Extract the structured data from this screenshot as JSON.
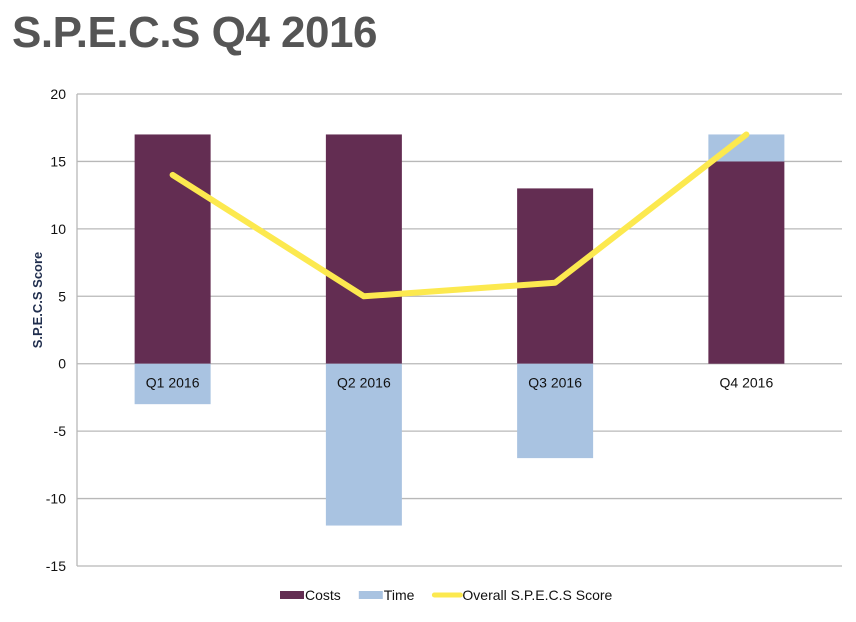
{
  "chart_data": {
    "type": "bar",
    "title": "S.P.E.C.S Q4 2016",
    "xlabel": "",
    "ylabel": "S.P.E.C.S Score",
    "ylim": [
      -15,
      20
    ],
    "yticks": [
      20,
      15,
      10,
      5,
      0,
      -5,
      -10,
      -15
    ],
    "grid": true,
    "stacked": true,
    "categories": [
      "Q1 2016",
      "Q2 2016",
      "Q3 2016",
      "Q4 2016"
    ],
    "series": [
      {
        "name": "Costs",
        "type": "bar",
        "color": "#632d52",
        "values": [
          17,
          17,
          13,
          15
        ]
      },
      {
        "name": "Time",
        "type": "bar",
        "color": "#a9c3e1",
        "values": [
          -3,
          -12,
          -7,
          2
        ]
      },
      {
        "name": "Overall S.P.E.C.S Score",
        "type": "line",
        "color": "#fce94f",
        "values": [
          14,
          5,
          6,
          17
        ]
      }
    ],
    "legend": "bottom"
  }
}
